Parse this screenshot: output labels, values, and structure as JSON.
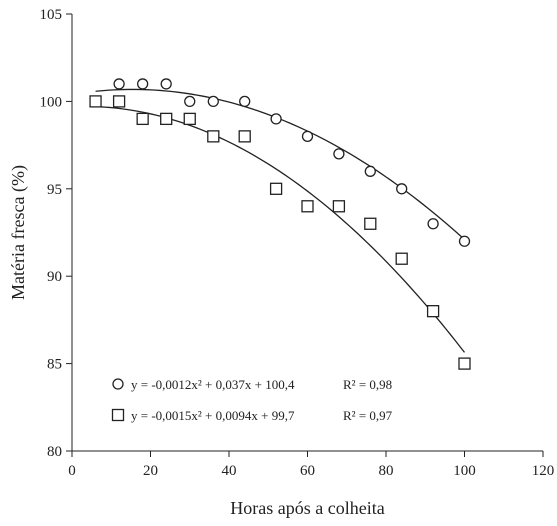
{
  "chart_data": {
    "type": "scatter",
    "xlabel": "Horas após a colheita",
    "ylabel": "Matéria fresca (%)",
    "xlim": [
      0,
      120
    ],
    "ylim": [
      80,
      105
    ],
    "xticks": [
      0,
      20,
      40,
      60,
      80,
      100,
      120
    ],
    "yticks": [
      80,
      85,
      90,
      95,
      100,
      105
    ],
    "xtick_labels": [
      "0",
      "20",
      "40",
      "60",
      "80",
      "100",
      "120"
    ],
    "ytick_labels": [
      "80",
      "85",
      "90",
      "95",
      "100",
      "105"
    ],
    "grid": false,
    "legend_position": "bottom-left",
    "series": [
      {
        "marker": "circle",
        "x": [
          6,
          12,
          18,
          24,
          30,
          36,
          44,
          52,
          60,
          68,
          76,
          84,
          92,
          100
        ],
        "y": [
          100,
          101,
          101,
          101,
          100,
          100,
          100,
          99,
          98,
          97,
          96,
          95,
          93,
          92
        ],
        "fit": {
          "a": -0.0012,
          "b": 0.037,
          "c": 100.4
        },
        "equation_label": "y = -0,0012x² + 0,037x + 100,4",
        "r2_label": "R² = 0,98"
      },
      {
        "marker": "square",
        "x": [
          6,
          12,
          18,
          24,
          30,
          36,
          44,
          52,
          60,
          68,
          76,
          84,
          92,
          100
        ],
        "y": [
          100,
          100,
          99,
          99,
          99,
          98,
          98,
          95,
          94,
          94,
          93,
          91,
          88,
          85
        ],
        "fit": {
          "a": -0.0015,
          "b": 0.0094,
          "c": 99.7
        },
        "equation_label": "y = -0,0015x² + 0,0094x + 99,7",
        "r2_label": "R² = 0,97"
      }
    ]
  }
}
